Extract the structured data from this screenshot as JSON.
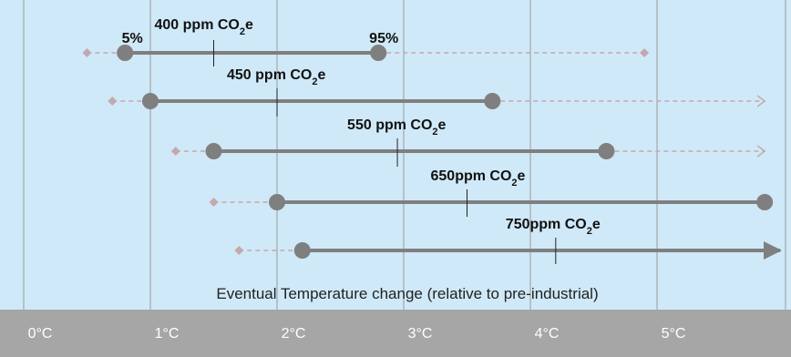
{
  "chart_data": {
    "type": "range",
    "xlabel": "Eventual Temperature change (relative to pre-industrial)",
    "x_ticks": [
      "0°C",
      "1°C",
      "2°C",
      "3°C",
      "4°C",
      "5°C"
    ],
    "x_tick_values": [
      0,
      1,
      2,
      3,
      4,
      5
    ],
    "xlim": [
      -0.1,
      5.85
    ],
    "grid": true,
    "percentile_labels": {
      "low": "5%",
      "high": "95%"
    },
    "series": [
      {
        "name": "400 ppm CO₂e",
        "ppm": "400 ppm CO",
        "suffix": "e",
        "p5": 0.8,
        "p95": 2.8,
        "tail_low": 0.5,
        "tail_high": 4.9,
        "central": 1.5,
        "tail_arrow": false
      },
      {
        "name": "450 ppm CO₂e",
        "ppm": "450 ppm CO",
        "suffix": "e",
        "p5": 1.0,
        "p95": 3.7,
        "tail_low": 0.7,
        "tail_high": 5.85,
        "central": 2.0,
        "tail_arrow": true
      },
      {
        "name": "550 ppm CO₂e",
        "ppm": "550 ppm CO",
        "suffix": "e",
        "p5": 1.5,
        "p95": 4.6,
        "tail_low": 1.2,
        "tail_high": 5.85,
        "central": 2.95,
        "tail_arrow": true
      },
      {
        "name": "650ppm CO₂e",
        "ppm": "650ppm CO",
        "suffix": "e",
        "p5": 2.0,
        "p95": 5.85,
        "tail_low": 1.5,
        "tail_high": null,
        "central": 3.5,
        "tail_arrow": false
      },
      {
        "name": "750ppm CO₂e",
        "ppm": "750ppm CO",
        "suffix": "e",
        "p5": 2.2,
        "p95": 5.85,
        "tail_low": 1.7,
        "tail_high": null,
        "central": 4.2,
        "tail_arrow": false,
        "main_arrow": true
      }
    ],
    "colors": {
      "background": "#cfe9f8",
      "axis_band": "#a6a6a6",
      "gridline": "#9a9a9a",
      "range_line": "#7f7f7f",
      "tail": "#c3a9ad"
    }
  }
}
